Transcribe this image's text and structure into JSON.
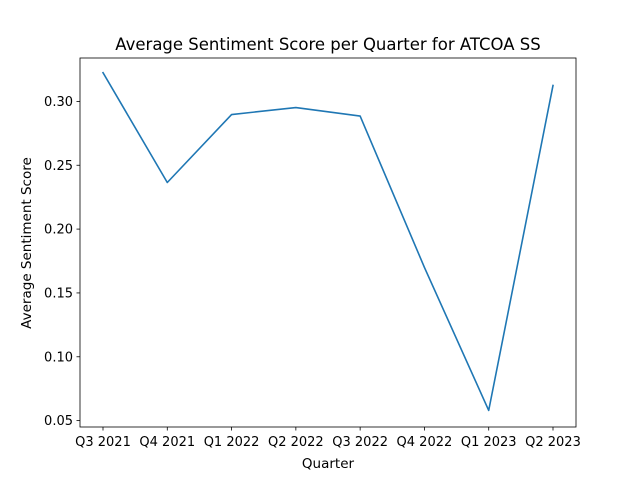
{
  "chart_data": {
    "type": "line",
    "title": "Average Sentiment Score per Quarter for ATCOA SS",
    "xlabel": "Quarter",
    "ylabel": "Average Sentiment Score",
    "categories": [
      "Q3 2021",
      "Q4 2021",
      "Q1 2022",
      "Q2 2022",
      "Q3 2022",
      "Q4 2022",
      "Q1 2023",
      "Q2 2023"
    ],
    "series": [
      {
        "values": [
          0.3225,
          0.2365,
          0.2897,
          0.2952,
          0.2885,
          0.17,
          0.058,
          0.3125
        ],
        "color": "#1f77b4"
      }
    ],
    "ylim": [
      0.045,
      0.334
    ],
    "yticks": [
      0.05,
      0.1,
      0.15,
      0.2,
      0.25,
      0.3
    ],
    "ytick_labels": [
      "0.05",
      "0.10",
      "0.15",
      "0.20",
      "0.25",
      "0.30"
    ],
    "grid": false,
    "legend": "none"
  }
}
